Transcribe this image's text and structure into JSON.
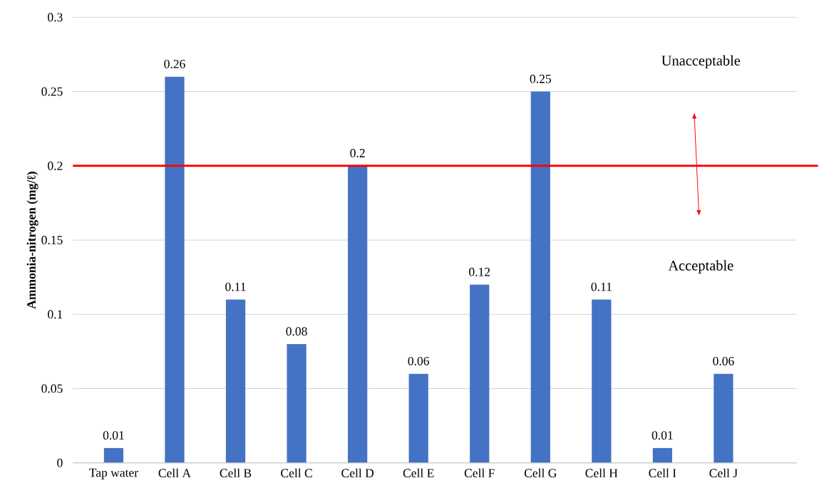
{
  "chart_data": {
    "type": "bar",
    "ylabel": "Ammonia-nitrogen (mg/ℓ)",
    "categories": [
      "Tap water",
      "Cell A",
      "Cell B",
      "Cell C",
      "Cell D",
      "Cell E",
      "Cell F",
      "Cell G",
      "Cell H",
      "Cell I",
      "Cell J"
    ],
    "values": [
      0.01,
      0.26,
      0.11,
      0.08,
      0.2,
      0.06,
      0.12,
      0.25,
      0.11,
      0.01,
      0.06
    ],
    "color": "#4472c4",
    "ylim": [
      0,
      0.3
    ],
    "yticks": [
      0,
      0.05,
      0.1,
      0.15,
      0.2,
      0.25,
      0.3
    ],
    "grid": "y",
    "data_labels": true,
    "ref_lines": [
      {
        "axis": "y",
        "value": 0.2,
        "color": "#ff0000"
      }
    ],
    "annotations": [
      "Unacceptable",
      "Acceptable"
    ]
  }
}
